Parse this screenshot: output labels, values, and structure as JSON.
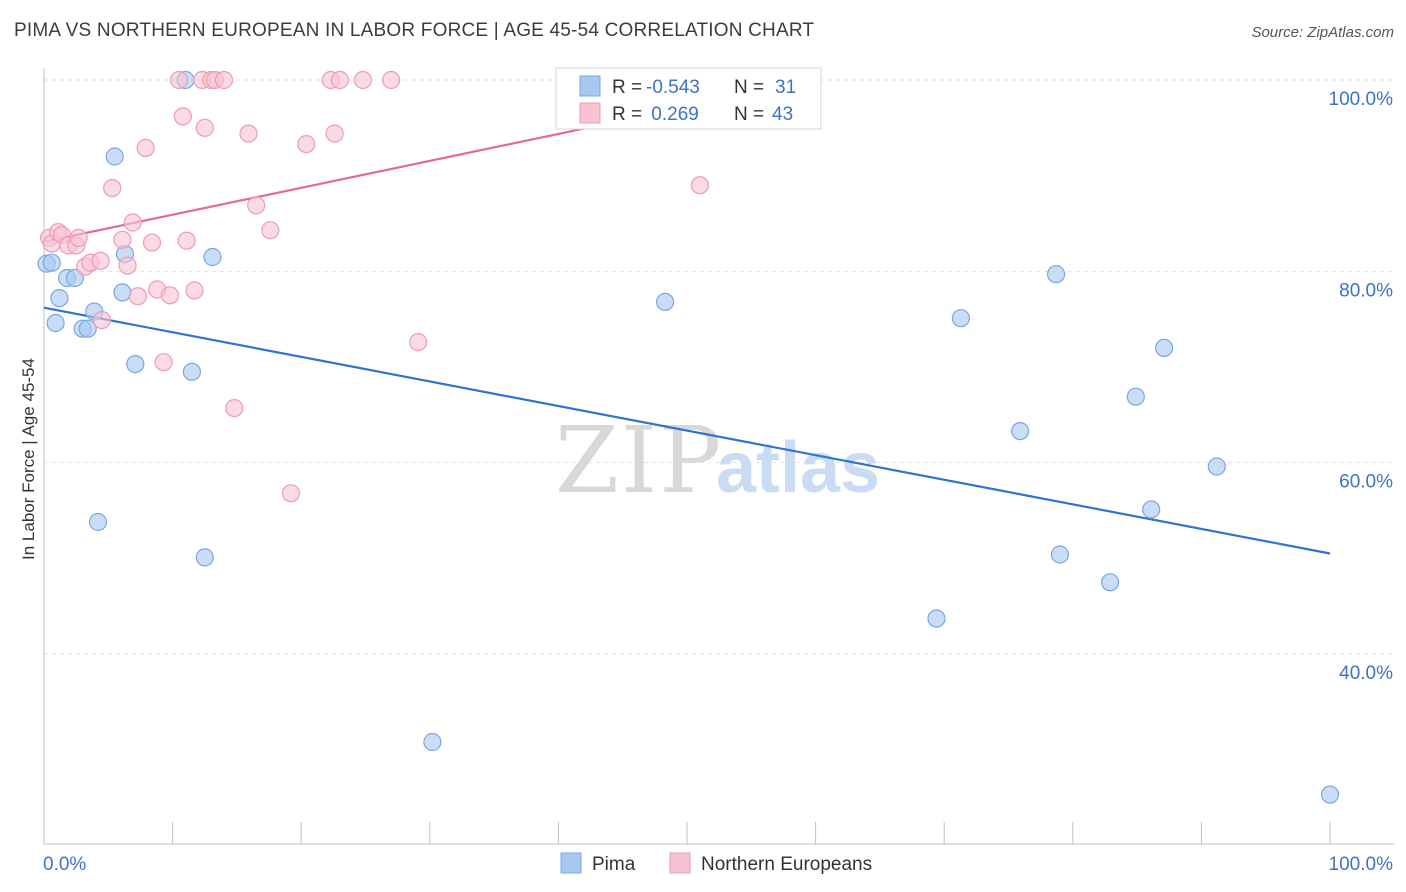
{
  "chart_data": {
    "type": "scatter",
    "title": "PIMA VS NORTHERN EUROPEAN IN LABOR FORCE | AGE 45-54 CORRELATION CHART",
    "source": "Source: ZipAtlas.com",
    "xlabel": "",
    "ylabel": "In Labor Force | Age 45-54",
    "xlim": [
      0,
      100
    ],
    "ylim": [
      20,
      102
    ],
    "x_tick_labels": [
      "0.0%",
      "100.0%"
    ],
    "y_ticks": [
      40,
      60,
      80,
      100
    ],
    "y_tick_labels": [
      "40.0%",
      "60.0%",
      "80.0%",
      "100.0%"
    ],
    "grid": true,
    "legend_position": "top-center",
    "watermark": "ZIPatlas",
    "legend": {
      "r_label": "R =",
      "n_label": "N =",
      "rows": [
        {
          "r": "-0.543",
          "n": "31"
        },
        {
          "r": " 0.269",
          "n": "43"
        }
      ]
    },
    "series": [
      {
        "name": "Pima",
        "color": "#a9c8f0",
        "edge": "#7aa7e0",
        "line_color": "#2e74d0",
        "trend": [
          [
            0,
            76.2
          ],
          [
            100,
            50.5
          ]
        ],
        "points": [
          [
            0.2,
            80.8
          ],
          [
            0.9,
            74.6
          ],
          [
            1.2,
            77.2
          ],
          [
            1.8,
            79.3
          ],
          [
            2.4,
            79.3
          ],
          [
            3.0,
            74.0
          ],
          [
            3.4,
            74.0
          ],
          [
            3.9,
            75.8
          ],
          [
            4.2,
            53.8
          ],
          [
            5.5,
            92.0
          ],
          [
            6.1,
            77.8
          ],
          [
            6.3,
            81.8
          ],
          [
            7.1,
            70.3
          ],
          [
            11.0,
            100.0
          ],
          [
            11.5,
            69.5
          ],
          [
            12.5,
            50.1
          ],
          [
            13.1,
            81.5
          ],
          [
            30.2,
            30.8
          ],
          [
            48.3,
            76.8
          ],
          [
            69.4,
            43.7
          ],
          [
            71.3,
            75.1
          ],
          [
            75.9,
            63.3
          ],
          [
            78.7,
            79.7
          ],
          [
            79.0,
            50.4
          ],
          [
            82.9,
            47.5
          ],
          [
            84.9,
            66.9
          ],
          [
            86.1,
            55.1
          ],
          [
            87.1,
            72.0
          ],
          [
            91.2,
            59.6
          ],
          [
            100.0,
            25.3
          ],
          [
            0.6,
            80.9
          ]
        ]
      },
      {
        "name": "Northern Europeans",
        "color": "#f7c3d3",
        "edge": "#ee9bb5",
        "line_color": "#e46a93",
        "trend": [
          [
            0,
            83.1
          ],
          [
            60,
            100.0
          ]
        ],
        "points": [
          [
            0.4,
            83.5
          ],
          [
            0.6,
            82.9
          ],
          [
            1.1,
            84.1
          ],
          [
            1.4,
            83.8
          ],
          [
            1.9,
            82.7
          ],
          [
            2.5,
            82.7
          ],
          [
            2.7,
            83.5
          ],
          [
            3.2,
            80.5
          ],
          [
            3.6,
            80.9
          ],
          [
            4.4,
            81.1
          ],
          [
            4.5,
            74.9
          ],
          [
            5.3,
            88.7
          ],
          [
            6.1,
            83.3
          ],
          [
            6.5,
            80.6
          ],
          [
            6.9,
            85.1
          ],
          [
            7.3,
            77.4
          ],
          [
            7.9,
            92.9
          ],
          [
            8.4,
            83.0
          ],
          [
            8.8,
            78.1
          ],
          [
            9.3,
            70.5
          ],
          [
            9.8,
            77.5
          ],
          [
            10.5,
            100.0
          ],
          [
            10.8,
            96.2
          ],
          [
            11.1,
            83.2
          ],
          [
            11.7,
            78.0
          ],
          [
            12.3,
            100.0
          ],
          [
            12.5,
            95.0
          ],
          [
            13.0,
            100.0
          ],
          [
            13.3,
            100.0
          ],
          [
            14.0,
            100.0
          ],
          [
            14.8,
            65.7
          ],
          [
            15.9,
            94.4
          ],
          [
            16.5,
            86.9
          ],
          [
            17.6,
            84.3
          ],
          [
            19.2,
            56.8
          ],
          [
            20.4,
            93.3
          ],
          [
            22.3,
            100.0
          ],
          [
            22.6,
            94.4
          ],
          [
            23.0,
            100.0
          ],
          [
            24.8,
            100.0
          ],
          [
            27.0,
            100.0
          ],
          [
            29.1,
            72.6
          ],
          [
            51.0,
            89.0
          ]
        ]
      }
    ]
  }
}
